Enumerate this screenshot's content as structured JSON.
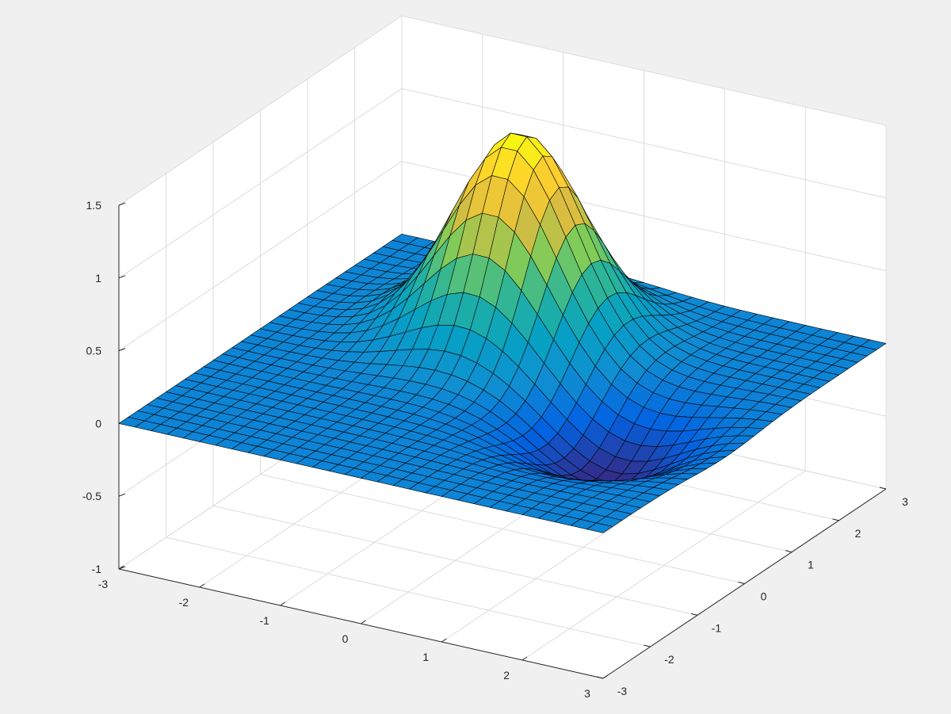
{
  "figure": {
    "background": "#f0f0f0",
    "axes_background": "#ffffff"
  },
  "chart_data": {
    "type": "surface",
    "title": "",
    "xlabel": "",
    "ylabel": "",
    "zlabel": "",
    "function": "peaks-like: 1.4*exp(-(x+0.5)^2-(y-1.2)^2) - 0.4*exp(-(x-1.5)^2-(y+0.4)^2) (approximate)",
    "xlim": [
      -3,
      3
    ],
    "ylim": [
      -3,
      3
    ],
    "zlim": [
      -1,
      1.5
    ],
    "x_ticks": [
      -3,
      -2,
      -1,
      0,
      1,
      2,
      3
    ],
    "x_tick_labels": [
      "-3",
      "-2",
      "-1",
      "0",
      "1",
      "2",
      "3"
    ],
    "y_ticks": [
      -3,
      -2,
      -1,
      0,
      1,
      2,
      3
    ],
    "y_tick_labels": [
      "-3",
      "-2",
      "-1",
      "0",
      "1",
      "2",
      "3"
    ],
    "z_ticks": [
      -1,
      -0.5,
      0,
      0.5,
      1,
      1.5
    ],
    "z_tick_labels": [
      "-1",
      "-0.5",
      "0",
      "0.5",
      "1",
      "1.5"
    ],
    "grid": true,
    "grid_points": 31,
    "colormap": "parula",
    "peak": {
      "x": -0.5,
      "y": 1.2,
      "z": 1.4
    },
    "trough": {
      "x": 1.5,
      "y": -0.4,
      "z": -0.4
    },
    "edge_color": "#000000"
  }
}
